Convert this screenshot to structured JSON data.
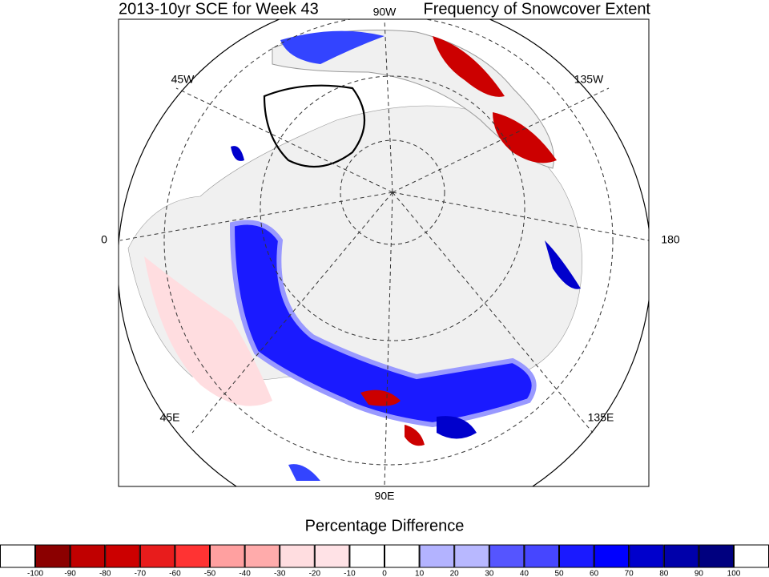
{
  "title_left": "2013-10yr SCE for Week 43",
  "title_center": "90W",
  "title_right": "Frequency of Snowcover Extent",
  "lon_labels": [
    "45W",
    "135W",
    "0",
    "180",
    "45E",
    "135E",
    "90E"
  ],
  "colorbar": {
    "label": "Percentage Difference",
    "ticks": [
      -100,
      -90,
      -80,
      -70,
      -60,
      -50,
      -40,
      -30,
      -20,
      -10,
      0,
      10,
      20,
      30,
      40,
      50,
      60,
      70,
      80,
      90,
      100
    ],
    "colors": [
      "#ffffff",
      "#8b0000",
      "#c00000",
      "#cc0000",
      "#e81c1c",
      "#ff3333",
      "#ffa0a0",
      "#ffabab",
      "#ffdde0",
      "#ffe2e6",
      "#ffffff",
      "#ffffff",
      "#b3b3ff",
      "#b8b8ff",
      "#5555ff",
      "#4646ff",
      "#1a1aff",
      "#0000ff",
      "#0000cc",
      "#0000aa",
      "#00007f",
      "#ffffff"
    ]
  }
}
